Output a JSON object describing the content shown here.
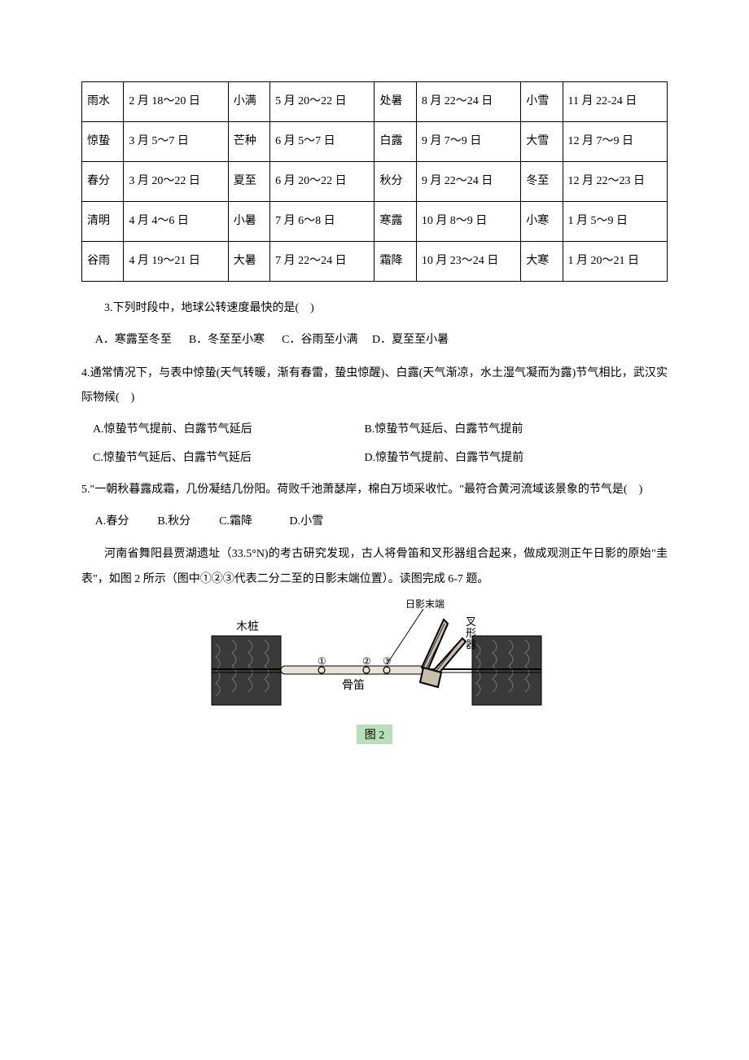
{
  "table": {
    "columns": [
      "name",
      "dates",
      "name",
      "dates",
      "name",
      "dates",
      "name",
      "dates"
    ],
    "col_widths": [
      "6%",
      "15%",
      "6%",
      "15%",
      "6%",
      "15%",
      "6%",
      "15%"
    ],
    "rows": [
      [
        "雨水",
        "2 月 18～20 日",
        "小满",
        "5 月 20～22 日",
        "处暑",
        "8 月 22～24 日",
        "小雪",
        "11 月 22-24 日"
      ],
      [
        "惊蛰",
        "3 月 5～7 日",
        "芒种",
        "6 月 5～7 日",
        "白露",
        "9 月 7～9 日",
        "大雪",
        "12 月 7～9 日"
      ],
      [
        "春分",
        "3 月 20～22 日",
        "夏至",
        "6 月 20～22 日",
        "秋分",
        "9 月 22～24 日",
        "冬至",
        "12 月 22～23 日"
      ],
      [
        "清明",
        "4 月 4～6 日",
        "小暑",
        "7 月 6～8 日",
        "寒露",
        "10 月 8～9 日",
        "小寒",
        "1 月 5～9 日"
      ],
      [
        "谷雨",
        "4 月 19～21 日",
        "大暑",
        "7 月 22～24 日",
        "霜降",
        "10 月 23～24 日",
        "大寒",
        "1 月 20～21 日"
      ]
    ],
    "border_color": "#000000",
    "text_color": "#000000",
    "fontsize": 14
  },
  "q3": {
    "stem": "3.下列时段中，地球公转速度最快的是(　)",
    "opts": " A．寒露至冬至      B．冬至至小寒      C．谷雨至小满     D．夏至至小暑"
  },
  "q4": {
    "stem": "4.通常情况下，与表中惊蛰(天气转暖，渐有春雷，蛰虫惊醒)、白露(天气渐凉，水土湿气凝而为露)节气相比，武汉实际物候(　)",
    "optA": "A.惊蛰节气提前、白露节气延后",
    "optB": "B.惊蛰节气延后、白露节气提前",
    "optC": "C.惊蛰节气延后、白露节气延后",
    "optD": "D.惊蛰节气提前、白露节气提前"
  },
  "q5": {
    "stem": "5.\"一朝秋暮露成霜，几份凝结几份阳。荷败千池萧瑟岸，棉白万顷采收忙。\"最符合黄河流域该景象的节气是(　)",
    "opts": " A.春分          B.秋分          C.霜降             D.小雪"
  },
  "passage": "河南省舞阳县贾湖遗址（33.5°N)的考古研究发现，古人将骨笛和叉形器组合起来，做成观测正午日影的原始\"圭表\"，如图 2 所示（图中①②③代表二分二至的日影末端位置）。读图完成 6-7 题。",
  "figure": {
    "caption": "图 2",
    "labels": {
      "stake": "木桩",
      "flute": "骨笛",
      "fork": "叉形器",
      "shadow_end": "日影末端",
      "mark1": "①",
      "mark2": "②",
      "mark3": "③"
    },
    "caption_bg": "#b8e0b8",
    "stroke": "#000000",
    "fill_dark": "#3a3a3a",
    "fill_mid": "#6b6b6b"
  }
}
